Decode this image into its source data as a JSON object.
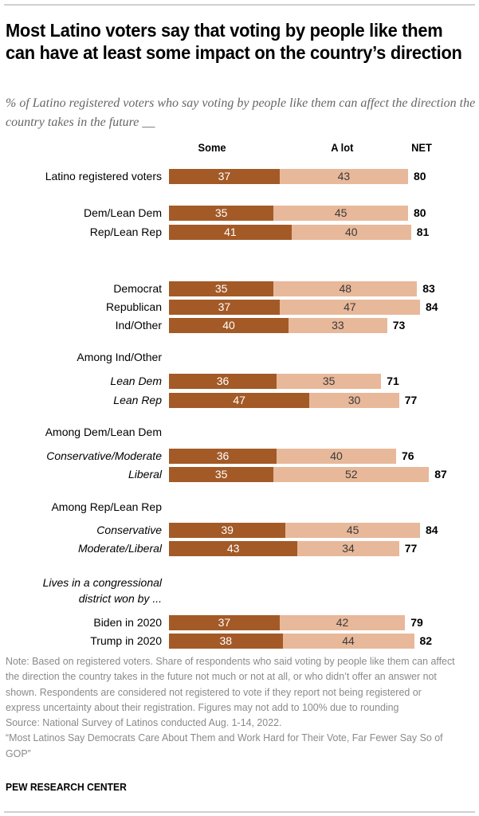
{
  "title": "Most Latino voters say that voting by people like them can have at least some impact on the country’s direction",
  "subtitle": "% of Latino registered voters who say voting by people like them can affect the direction the country takes in the future __",
  "colors": {
    "some": "#a35a27",
    "a_lot": "#e8b89a"
  },
  "chart_data": {
    "type": "bar",
    "orientation": "horizontal",
    "stacked": true,
    "title": "Most Latino voters say that voting by people like them can have at least some impact on the country’s direction",
    "legend": [
      "Some",
      "A lot",
      "NET"
    ],
    "column_headers": {
      "some": "Some",
      "a_lot": "A lot",
      "net": "NET"
    },
    "groups": [
      {
        "label": "",
        "italic": false,
        "rows": [
          {
            "label": "Latino registered voters",
            "italic": false,
            "some": 37,
            "a_lot": 43,
            "net": 80
          }
        ]
      },
      {
        "label": "",
        "italic": false,
        "rows": [
          {
            "label": "Dem/Lean Dem",
            "italic": false,
            "some": 35,
            "a_lot": 45,
            "net": 80
          },
          {
            "label": "Rep/Lean Rep",
            "italic": false,
            "some": 41,
            "a_lot": 40,
            "net": 81
          }
        ]
      },
      {
        "label": "",
        "italic": false,
        "rows": [
          {
            "label": "Democrat",
            "italic": false,
            "some": 35,
            "a_lot": 48,
            "net": 83
          },
          {
            "label": "Republican",
            "italic": false,
            "some": 37,
            "a_lot": 47,
            "net": 84
          },
          {
            "label": "Ind/Other",
            "italic": false,
            "some": 40,
            "a_lot": 33,
            "net": 73
          }
        ]
      },
      {
        "label": "Among Ind/Other",
        "italic": false,
        "rows": [
          {
            "label": "Lean Dem",
            "italic": true,
            "some": 36,
            "a_lot": 35,
            "net": 71
          },
          {
            "label": "Lean Rep",
            "italic": true,
            "some": 47,
            "a_lot": 30,
            "net": 77
          }
        ]
      },
      {
        "label": "Among Dem/Lean Dem",
        "italic": false,
        "rows": [
          {
            "label": "Conservative/Moderate",
            "italic": true,
            "some": 36,
            "a_lot": 40,
            "net": 76
          },
          {
            "label": "Liberal",
            "italic": true,
            "some": 35,
            "a_lot": 52,
            "net": 87
          }
        ]
      },
      {
        "label": "Among Rep/Lean Rep",
        "italic": false,
        "rows": [
          {
            "label": "Conservative",
            "italic": true,
            "some": 39,
            "a_lot": 45,
            "net": 84
          },
          {
            "label": "Moderate/Liberal",
            "italic": true,
            "some": 43,
            "a_lot": 34,
            "net": 77
          }
        ]
      },
      {
        "label": "Lives in a congressional district won by ...",
        "label_lines": [
          "Lives in a congressional",
          "district won by ..."
        ],
        "italic": true,
        "rows": [
          {
            "label": "Biden in 2020",
            "italic": false,
            "some": 37,
            "a_lot": 42,
            "net": 79
          },
          {
            "label": "Trump in 2020",
            "italic": false,
            "some": 38,
            "a_lot": 44,
            "net": 82
          }
        ]
      }
    ],
    "xlim": [
      0,
      100
    ],
    "grid": false
  },
  "notes": {
    "note": "Note: Based on registered voters. Share of respondents who said voting by people like them can affect the direction the country takes in the future not much or not at all, or who didn’t offer an answer not shown. Respondents are considered not registered to vote if they report not being registered or express uncertainty about their registration.  Figures may not add to 100% due to rounding",
    "source": "Source: National Survey of Latinos conducted Aug. 1-14, 2022.",
    "report": "“Most Latinos Say Democrats Care About Them and Work Hard for Their Vote, Far Fewer Say So of GOP”"
  },
  "brand": "PEW RESEARCH CENTER"
}
